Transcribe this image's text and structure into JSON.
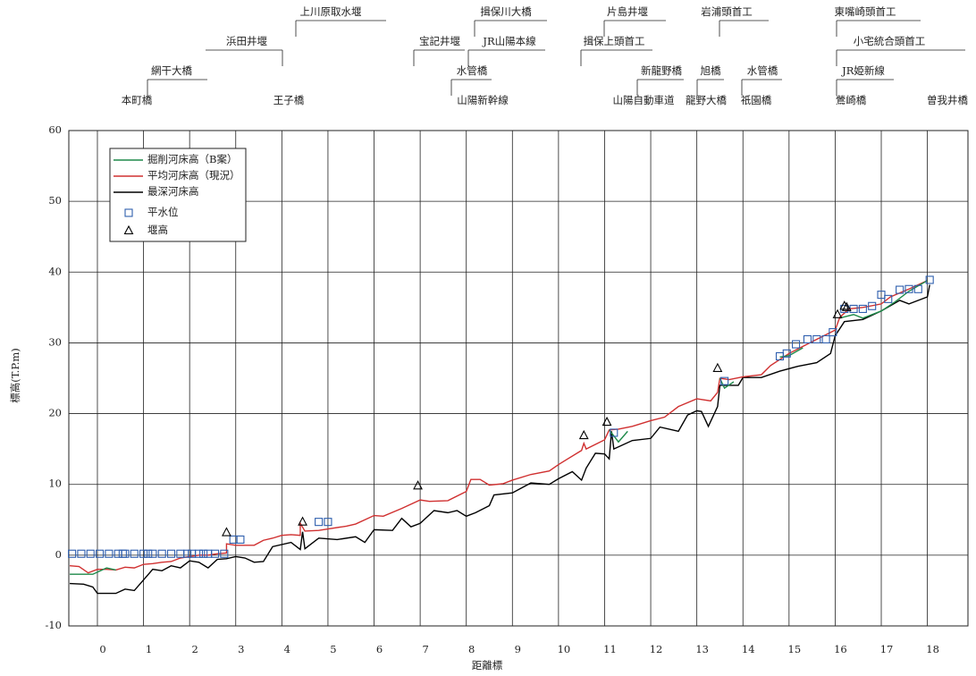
{
  "chart_data": {
    "type": "line",
    "x_label": "距離標",
    "y_label": "標高(T.P.m)",
    "xlim": [
      -0.62,
      18.88
    ],
    "ylim": [
      -10,
      60
    ],
    "xticks": [
      0,
      1,
      2,
      3,
      4,
      5,
      6,
      7,
      8,
      9,
      10,
      11,
      12,
      13,
      14,
      15,
      16,
      17,
      18
    ],
    "yticks": [
      -10,
      0,
      10,
      20,
      30,
      40,
      50,
      60
    ],
    "grid": true,
    "annotations": [
      "上川原取水堰",
      "揖保川大橋",
      "片島井堰",
      "岩浦頭首工",
      "東嘴崎頭首工",
      "浜田井堰",
      "宝記井堰",
      "JR山陽本線",
      "揖保上頭首工",
      "小宅統合頭首工",
      "網干大橋",
      "水管橋",
      "新龍野橋",
      "旭橋",
      "水管橋",
      "JR姫新線",
      "本町橋",
      "王子橋",
      "山陽新幹線",
      "山陽自動車道",
      "龍野大橋",
      "祇園橋",
      "鶯崎橋",
      "曽我井橋"
    ],
    "series": [
      {
        "name": "掘削河床高（B案）",
        "color": "#1e8a4a",
        "style": "line",
        "x": [
          -0.6,
          -0.1,
          0.2,
          0.4,
          null,
          11.1,
          11.3,
          11.5,
          null,
          13.5,
          13.6,
          13.8,
          null,
          14.8,
          15.0,
          15.3,
          null,
          16.1,
          16.4,
          16.6,
          17.0,
          17.3,
          17.6,
          18.0
        ],
        "values": [
          -2.7,
          -2.7,
          -1.8,
          -2.1,
          null,
          17.7,
          16.0,
          17.5,
          null,
          25.0,
          23.6,
          24.5,
          null,
          28.0,
          28.2,
          29.3,
          null,
          33.5,
          34.0,
          33.5,
          34.5,
          35.8,
          37.3,
          38.8
        ]
      },
      {
        "name": "平均河床高（現況）",
        "color": "#d03030",
        "style": "line",
        "x": [
          -0.6,
          -0.4,
          -0.2,
          0,
          0.2,
          0.4,
          0.6,
          0.8,
          1,
          1.2,
          1.4,
          1.6,
          1.8,
          2,
          2.2,
          2.4,
          2.6,
          2.8,
          2.8,
          3,
          3.4,
          3.6,
          3.8,
          4,
          4.2,
          4.4,
          4.4,
          4.5,
          4.8,
          5,
          5.4,
          5.6,
          6,
          6.2,
          6.6,
          7,
          7.2,
          7.6,
          8,
          8.1,
          8.3,
          8.5,
          8.8,
          9,
          9.4,
          9.8,
          10,
          10.4,
          10.5,
          10.55,
          10.6,
          11,
          11.1,
          11.3,
          11.6,
          12,
          12.3,
          12.6,
          13,
          13.3,
          13.45,
          13.5,
          13.7,
          14,
          14.4,
          14.6,
          15,
          15.3,
          15.6,
          16,
          16.1,
          16.3,
          16.6,
          17,
          17.2,
          17.6,
          18
        ],
        "values": [
          -1.5,
          -1.6,
          -2.5,
          -2,
          -2,
          -2.1,
          -1.7,
          -1.8,
          -1.3,
          -1.2,
          -1,
          -0.9,
          -0.4,
          -0.2,
          0,
          0,
          0.2,
          0.3,
          1.6,
          1.4,
          1.4,
          2.1,
          2.4,
          2.8,
          2.9,
          2.8,
          4.5,
          3.4,
          3.5,
          3.7,
          4.1,
          4.4,
          5.6,
          5.5,
          6.6,
          7.8,
          7.6,
          7.7,
          9,
          10.7,
          10.7,
          9.9,
          10.1,
          10.6,
          11.4,
          11.9,
          12.8,
          14.4,
          14.8,
          15.8,
          15,
          16.3,
          17.7,
          17.8,
          18.2,
          19,
          19.5,
          21,
          22.1,
          21.8,
          23,
          25,
          24.8,
          25.2,
          25.5,
          26.8,
          28.5,
          29.5,
          30.5,
          31.8,
          33.6,
          34.8,
          35,
          35.5,
          36.5,
          37.6,
          38.8
        ]
      },
      {
        "name": "最深河床高",
        "color": "#000000",
        "style": "line",
        "x": [
          -0.6,
          -0.3,
          -0.1,
          0,
          0.4,
          0.6,
          0.8,
          1,
          1.2,
          1.4,
          1.6,
          1.8,
          2,
          2.2,
          2.4,
          2.6,
          2.8,
          3,
          3.2,
          3.4,
          3.6,
          3.8,
          4.2,
          4.4,
          4.45,
          4.5,
          4.8,
          5.2,
          5.6,
          5.8,
          6,
          6.4,
          6.6,
          6.8,
          7,
          7.3,
          7.6,
          7.8,
          8,
          8.2,
          8.5,
          8.6,
          9,
          9.4,
          9.8,
          10,
          10.3,
          10.5,
          10.6,
          10.8,
          11,
          11.1,
          11.15,
          11.2,
          11.6,
          12,
          12.2,
          12.6,
          12.8,
          13,
          13.1,
          13.25,
          13.45,
          13.5,
          13.9,
          14,
          14.2,
          14.4,
          14.8,
          15.2,
          15.6,
          15.9,
          16,
          16.2,
          16.6,
          17,
          17.4,
          17.6,
          18,
          18.05
        ],
        "values": [
          -4,
          -4.1,
          -4.5,
          -5.4,
          -5.4,
          -4.8,
          -5,
          -3.5,
          -2,
          -2.2,
          -1.5,
          -1.8,
          -0.8,
          -1,
          -1.8,
          -0.6,
          -0.5,
          -0.2,
          -0.4,
          -1,
          -0.9,
          1.2,
          1.8,
          0.8,
          3.3,
          0.9,
          2.4,
          2.2,
          2.6,
          1.8,
          3.6,
          3.5,
          5.2,
          4,
          4.5,
          6.3,
          6,
          6.3,
          5.5,
          6,
          7,
          8.5,
          8.8,
          10.2,
          10,
          10.8,
          11.8,
          10.6,
          12.3,
          14.4,
          14.3,
          13.6,
          17.5,
          15,
          16.2,
          16.5,
          18.1,
          17.5,
          19.8,
          20.4,
          20.3,
          18.2,
          21,
          24,
          24,
          25.1,
          25.1,
          25.1,
          26,
          26.7,
          27.2,
          28.5,
          31,
          33,
          33.3,
          34.5,
          36,
          35.5,
          36.5,
          38.2
        ]
      },
      {
        "name": "平水位",
        "color": "#2f5fae",
        "style": "square",
        "x": [
          -0.55,
          -0.35,
          -0.15,
          0.05,
          0.25,
          0.45,
          0.55,
          0.6,
          0.8,
          1.0,
          1.1,
          1.2,
          1.4,
          1.6,
          1.8,
          1.95,
          2.05,
          2.2,
          2.3,
          2.4,
          2.55,
          2.75,
          2.95,
          3.1,
          4.8,
          5.0,
          11.2,
          13.6,
          14.8,
          14.95,
          15.15,
          15.4,
          15.6,
          15.8,
          15.95,
          16.2,
          16.4,
          16.6,
          16.8,
          17.0,
          17.15,
          17.4,
          17.6,
          17.8,
          18.05
        ],
        "values": [
          0.2,
          0.2,
          0.2,
          0.2,
          0.2,
          0.2,
          0.2,
          0.2,
          0.2,
          0.2,
          0.2,
          0.2,
          0.2,
          0.2,
          0.2,
          0.2,
          0.2,
          0.2,
          0.2,
          0.2,
          0.2,
          0.2,
          2.2,
          2.2,
          4.7,
          4.7,
          17.3,
          24.6,
          28.1,
          28.5,
          29.8,
          30.5,
          30.5,
          30.5,
          31.5,
          34.8,
          34.8,
          34.8,
          35.2,
          36.8,
          36.2,
          37.5,
          37.6,
          37.6,
          38.9
        ]
      },
      {
        "name": "堰高",
        "color": "#000000",
        "style": "triangle",
        "x": [
          2.8,
          4.45,
          6.95,
          10.55,
          11.05,
          13.45,
          16.05,
          16.2,
          16.25
        ],
        "values": [
          3.2,
          4.7,
          9.8,
          16.9,
          18.8,
          26.4,
          34,
          35.2,
          35
        ]
      }
    ]
  }
}
